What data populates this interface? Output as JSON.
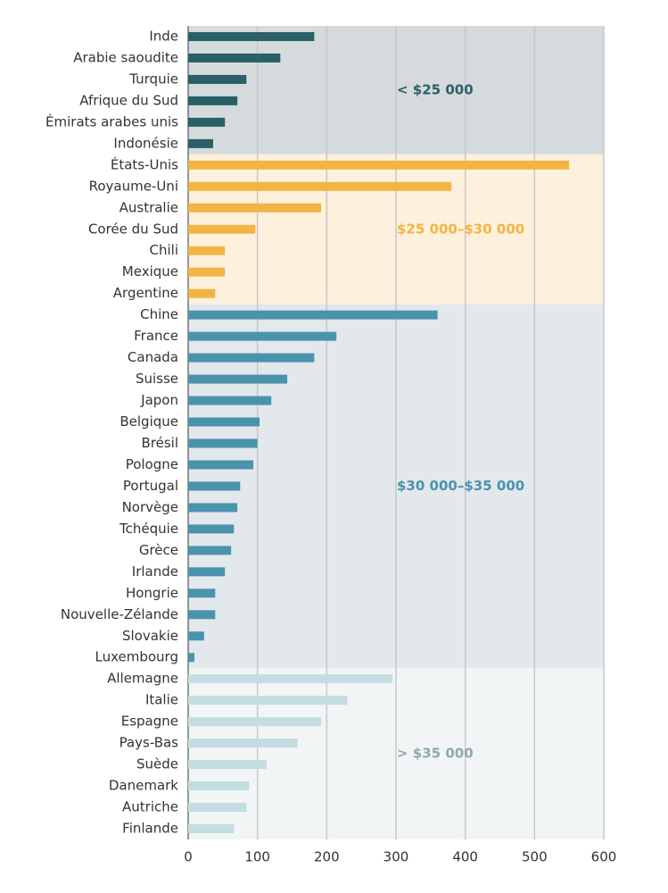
{
  "chart_data": {
    "type": "bar",
    "xlim": [
      0,
      600
    ],
    "xticks": [
      0,
      100,
      200,
      300,
      400,
      500,
      600
    ],
    "grid": true,
    "groups": [
      {
        "name": "< $25 000",
        "color": "#2a5f67",
        "band_color": "#d5dadd",
        "categories": [
          "Inde",
          "Arabie saoudite",
          "Turquie",
          "Afrique du Sud",
          "Émirats arabes unis",
          "Indonésie"
        ],
        "values": [
          182,
          133,
          84,
          71,
          53,
          36
        ]
      },
      {
        "name": "$25 000–$30 000",
        "color": "#f2b545",
        "band_color": "#fdf0dc",
        "categories": [
          "États-Unis",
          "Royaume-Uni",
          "Australie",
          "Corée du Sud",
          "Chili",
          "Mexique",
          "Argentine"
        ],
        "values": [
          550,
          380,
          192,
          97,
          53,
          53,
          39
        ]
      },
      {
        "name": "$30 000–$35 000",
        "color": "#4a93ac",
        "band_color": "#e2e8ec",
        "categories": [
          "Chine",
          "France",
          "Canada",
          "Suisse",
          "Japon",
          "Belgique",
          "Brésil",
          "Pologne",
          "Portugal",
          "Norvège",
          "Tchéquie",
          "Grèce",
          "Irlande",
          "Hongrie",
          "Nouvelle-Zélande",
          "Slovakie",
          "Luxembourg"
        ],
        "values": [
          360,
          214,
          182,
          143,
          120,
          103,
          100,
          94,
          75,
          71,
          66,
          62,
          53,
          39,
          39,
          23,
          9
        ]
      },
      {
        "name": "> $35 000",
        "color": "#c3dde0",
        "band_color": "#f2f5f6",
        "label_color": "#8fa9ad",
        "categories": [
          "Allemagne",
          "Italie",
          "Espagne",
          "Pays-Bas",
          "Suède",
          "Danemark",
          "Autriche",
          "Finlande"
        ],
        "values": [
          295,
          230,
          192,
          158,
          113,
          88,
          84,
          66
        ]
      }
    ]
  }
}
